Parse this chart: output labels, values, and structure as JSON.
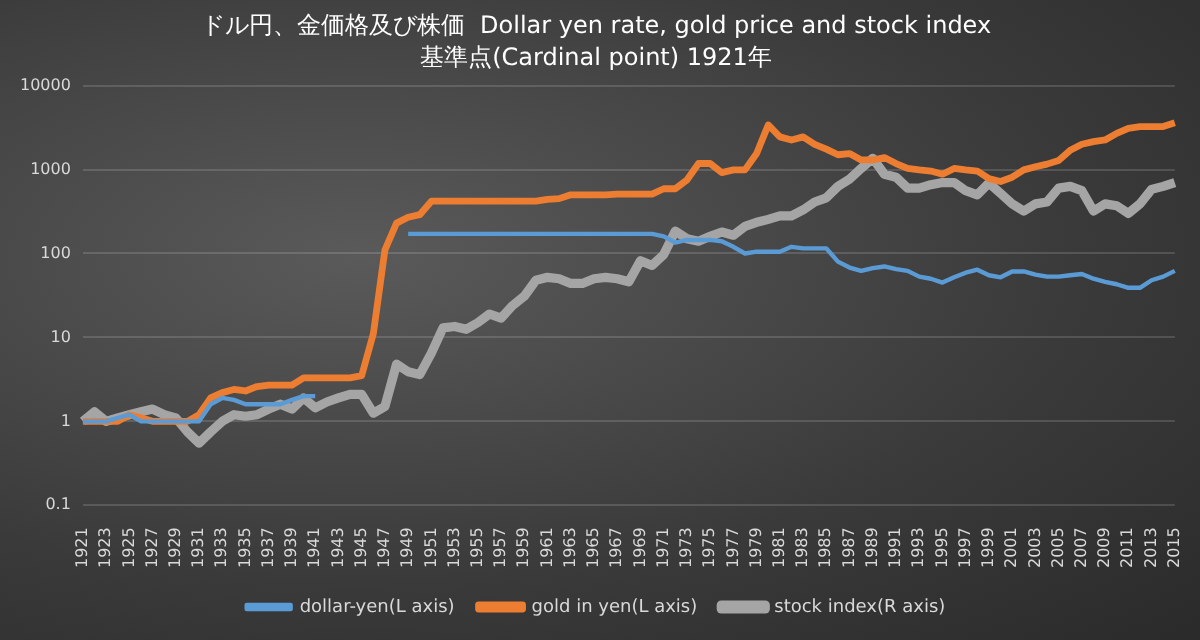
{
  "chart_data": {
    "type": "line",
    "title": "ドル円、金価格及び株価  Dollar yen rate, gold price and stock index",
    "subtitle": "基準点(Cardinal point) 1921年",
    "categories": [
      "1921",
      null,
      "1923",
      null,
      "1925",
      null,
      "1927",
      null,
      "1929",
      null,
      "1931",
      null,
      "1933",
      null,
      "1935",
      null,
      "1937",
      null,
      "1939",
      null,
      "1941",
      null,
      "1943",
      null,
      "1945",
      null,
      "1947",
      null,
      "1949",
      null,
      "1951",
      null,
      "1953",
      null,
      "1955",
      null,
      "1957",
      null,
      "1959",
      null,
      "1961",
      null,
      "1963",
      null,
      "1965",
      null,
      "1967",
      null,
      "1969",
      null,
      "1971",
      null,
      "1973",
      null,
      "1975",
      null,
      "1977",
      null,
      "1979",
      null,
      "1981",
      null,
      "1983",
      null,
      "1985",
      null,
      "1987",
      null,
      "1989",
      null,
      "1991",
      null,
      "1993",
      null,
      "1995",
      null,
      "1997",
      null,
      "1999",
      null,
      "2001",
      null,
      "2003",
      null,
      "2005",
      null,
      "2007",
      null,
      "2009",
      null,
      "2011",
      null,
      "2013",
      null,
      "2015"
    ],
    "series": [
      {
        "name": "dollar-yen(L axis)",
        "color": "#5b9bd5",
        "values": [
          1,
          1,
          1,
          1.1,
          1.2,
          1,
          1,
          1,
          1,
          1,
          1,
          1.6,
          1.9,
          1.8,
          1.6,
          1.6,
          1.6,
          1.6,
          1.8,
          2,
          2,
          null,
          null,
          null,
          null,
          null,
          null,
          null,
          171,
          171,
          171,
          171,
          171,
          171,
          171,
          171,
          171,
          171,
          171,
          171,
          171,
          171,
          171,
          171,
          171,
          171,
          171,
          171,
          171,
          171,
          160,
          135,
          145,
          145,
          145,
          140,
          120,
          100,
          105,
          105,
          105,
          120,
          115,
          115,
          115,
          80,
          68,
          62,
          67,
          70,
          65,
          62,
          53,
          50,
          45,
          52,
          59,
          64,
          55,
          52,
          61,
          61,
          56,
          53,
          53,
          55,
          57,
          50,
          46,
          43,
          39,
          39,
          48,
          53,
          62
        ]
      },
      {
        "name": "gold in yen(L axis)",
        "color": "#ed7d31",
        "values": [
          1,
          1,
          1,
          1,
          1.2,
          1.1,
          1,
          1,
          1,
          1,
          1.2,
          1.9,
          2.2,
          2.4,
          2.3,
          2.6,
          2.7,
          2.7,
          2.7,
          3.3,
          3.3,
          3.3,
          3.3,
          3.3,
          3.5,
          11,
          110,
          230,
          270,
          290,
          420,
          420,
          420,
          420,
          420,
          420,
          420,
          420,
          420,
          420,
          440,
          450,
          500,
          500,
          500,
          500,
          510,
          510,
          510,
          510,
          590,
          590,
          750,
          1180,
          1180,
          920,
          990,
          990,
          1550,
          3400,
          2450,
          2250,
          2450,
          2000,
          1750,
          1500,
          1550,
          1300,
          1300,
          1390,
          1180,
          1030,
          990,
          960,
          880,
          1030,
          990,
          960,
          780,
          720,
          810,
          990,
          1080,
          1160,
          1280,
          1700,
          2000,
          2150,
          2250,
          2700,
          3100,
          3250,
          3250,
          3250,
          3600
        ]
      },
      {
        "name": "stock index(R axis)",
        "color": "#a5a5a5",
        "values": [
          1,
          1.3,
          1,
          1.1,
          1.2,
          1.3,
          1.4,
          1.2,
          1.1,
          0.75,
          0.55,
          0.75,
          1,
          1.2,
          1.15,
          1.2,
          1.4,
          1.6,
          1.4,
          1.9,
          1.45,
          1.7,
          1.9,
          2.1,
          2.1,
          1.25,
          1.5,
          4.8,
          3.9,
          3.6,
          6.5,
          13,
          13.5,
          12.5,
          15,
          19,
          17,
          24,
          31,
          48,
          52,
          50,
          44,
          44,
          50,
          52,
          50,
          46,
          82,
          72,
          97,
          185,
          150,
          140,
          160,
          180,
          165,
          210,
          235,
          255,
          280,
          280,
          330,
          410,
          460,
          630,
          770,
          1030,
          1360,
          880,
          810,
          600,
          600,
          660,
          700,
          700,
          560,
          500,
          690,
          520,
          390,
          320,
          390,
          410,
          600,
          630,
          560,
          320,
          390,
          370,
          300,
          390,
          580,
          630,
          700
        ]
      }
    ],
    "log": "y",
    "ylim": [
      0.1,
      10000
    ],
    "yticks": [
      0.1,
      1,
      10,
      100,
      1000,
      10000
    ],
    "grid": "y",
    "legend": "bottom",
    "marker": "none",
    "line_style": "solid"
  }
}
